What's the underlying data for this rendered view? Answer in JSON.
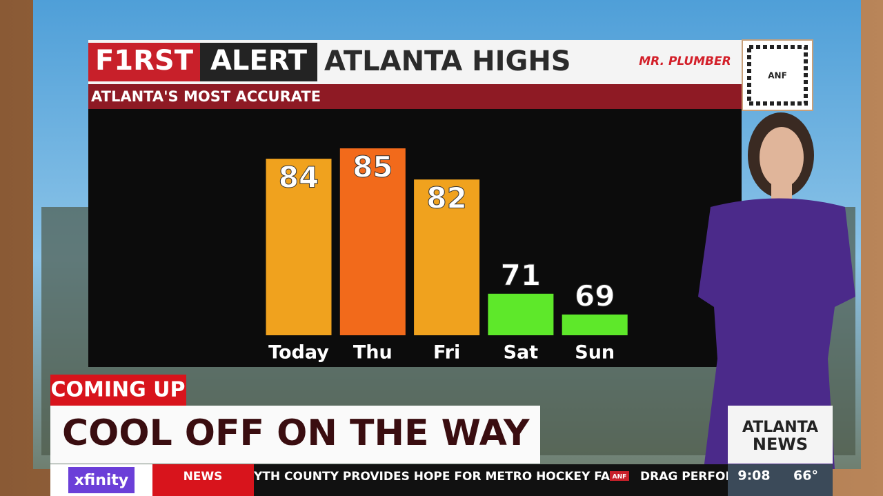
{
  "chart_data": {
    "type": "bar",
    "title": "ATLANTA HIGHS",
    "brand": [
      "F1RST",
      "ALERT"
    ],
    "subtitle": "ATLANTA'S MOST ACCURATE",
    "categories": [
      "Today",
      "Thu",
      "Fri",
      "Sat",
      "Sun"
    ],
    "values": [
      84,
      85,
      82,
      71,
      69
    ],
    "colors": [
      "#f0a21e",
      "#f26a1b",
      "#f0a21e",
      "#5ee82a",
      "#5ee82a"
    ],
    "ylim": [
      67,
      86
    ]
  },
  "sponsor": {
    "name": "MR. PLUMBER",
    "qr_label": "ANF"
  },
  "lower_third": {
    "kicker": "COMING UP",
    "headline": "COOL OFF ON THE WAY",
    "station": [
      "ATLANTA",
      "NEWS"
    ]
  },
  "ticker": {
    "partner": "xfinity",
    "section": "NEWS",
    "story": "YTH COUNTY PROVIDES HOPE FOR METRO HOCKEY FANS",
    "separator": "ANF",
    "next_story": "DRAG PERFOR",
    "time": "9:08",
    "temperature": "66°"
  }
}
